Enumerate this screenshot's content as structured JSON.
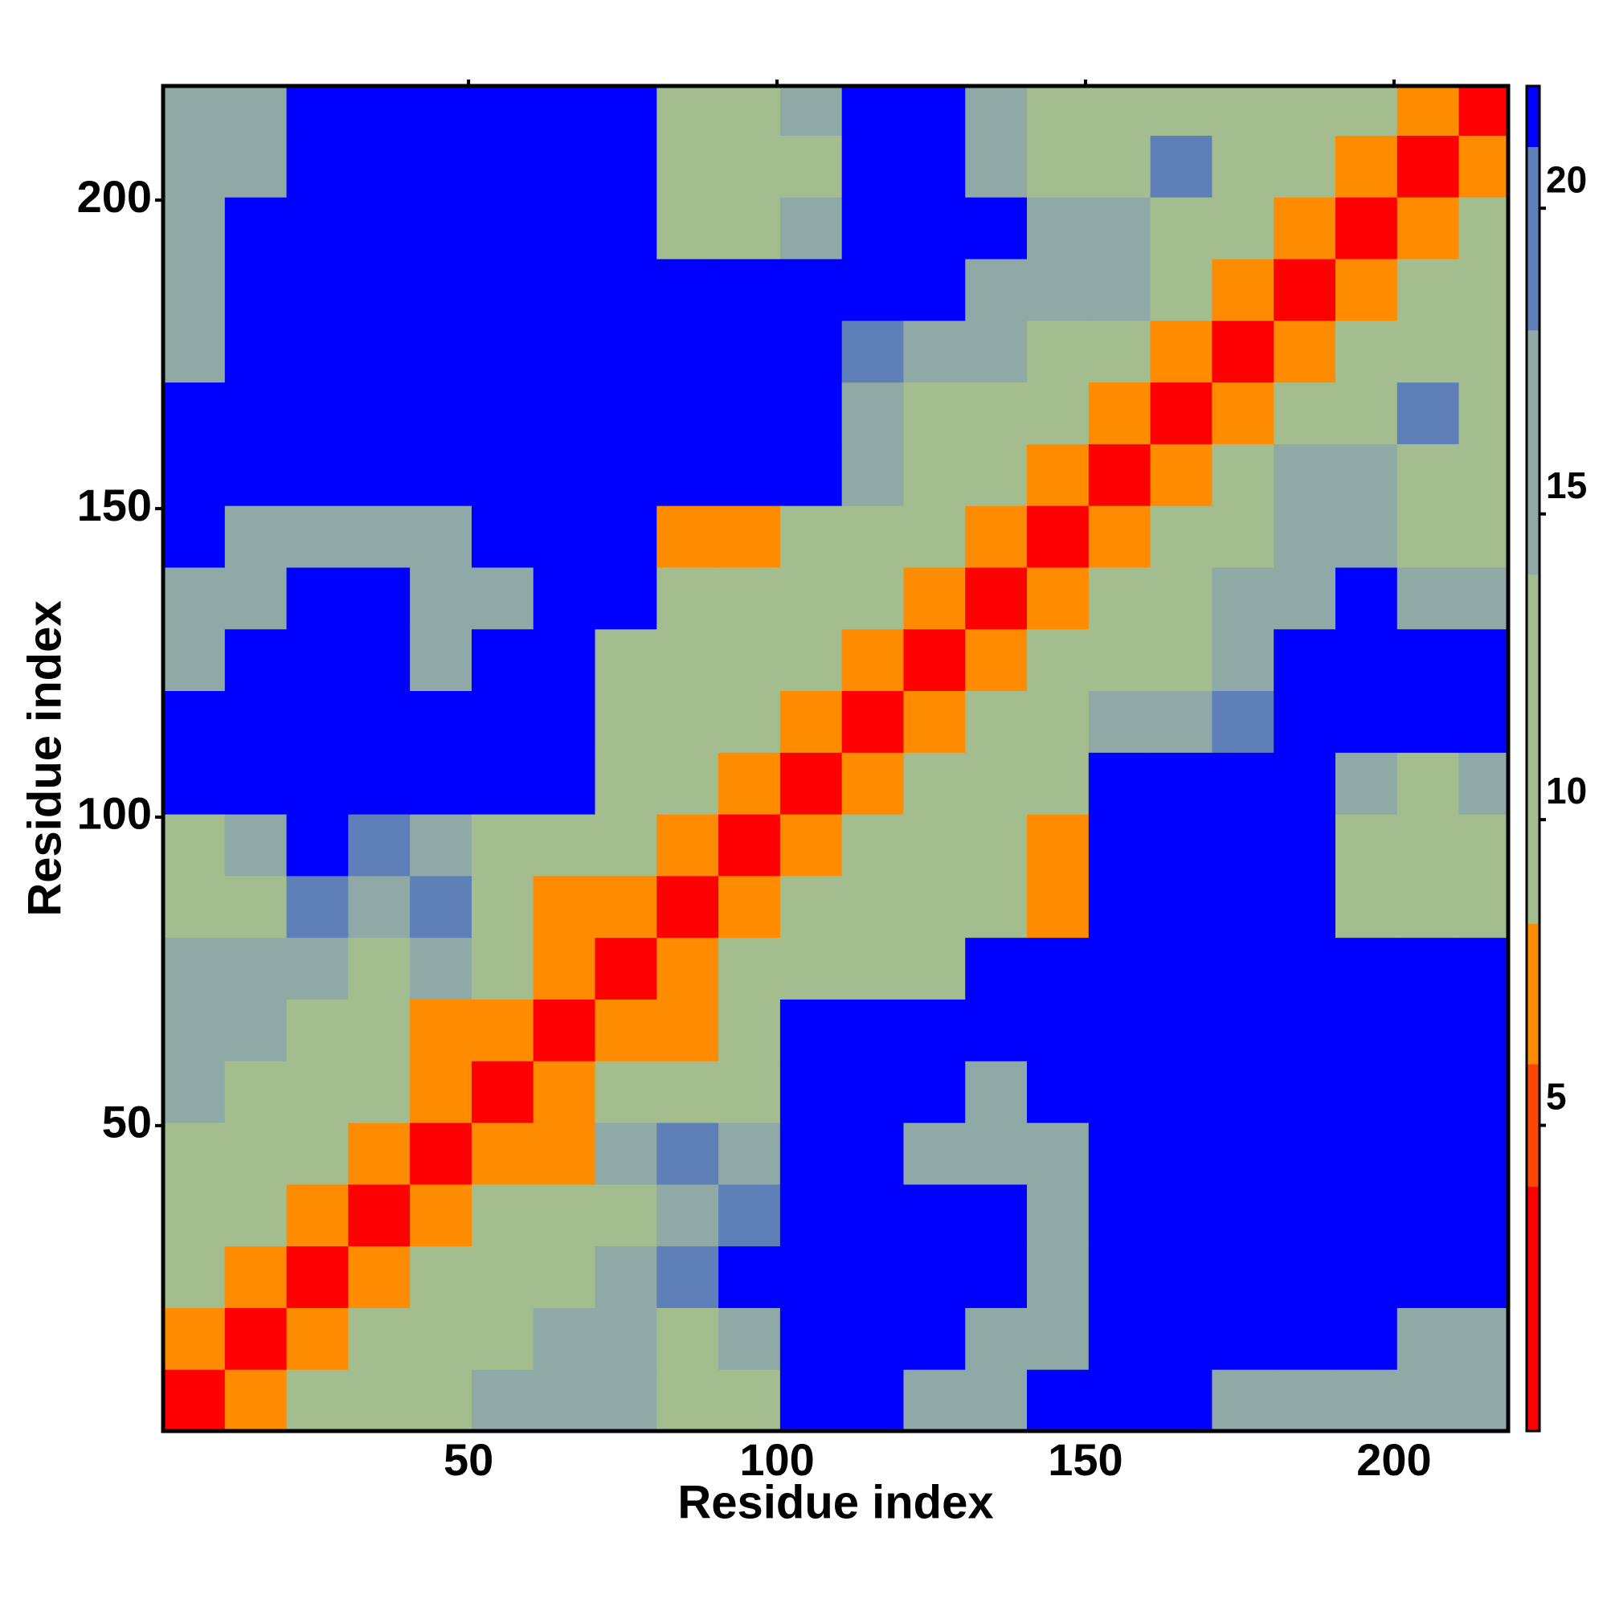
{
  "chart_data": {
    "type": "heatmap",
    "xlabel": "Residue index",
    "ylabel": "Residue index",
    "xlim": [
      0.5,
      218.5
    ],
    "ylim": [
      0.5,
      218.5
    ],
    "xticks": [
      50,
      100,
      150,
      200
    ],
    "yticks": [
      50,
      100,
      150,
      200
    ],
    "xbins": [
      0.5,
      10.5,
      20.5,
      30.5,
      40.5,
      50.5,
      60.5,
      70.5,
      80.5,
      90.5,
      100.5,
      110.5,
      120.5,
      130.5,
      140.5,
      150.5,
      160.5,
      170.5,
      180.5,
      190.5,
      200.5,
      210.5,
      218.5
    ],
    "ybins": [
      0.5,
      10.5,
      20.5,
      30.5,
      40.5,
      50.5,
      60.5,
      70.5,
      80.5,
      90.5,
      100.5,
      110.5,
      120.5,
      130.5,
      140.5,
      150.5,
      160.5,
      170.5,
      180.5,
      190.5,
      200.5,
      210.5,
      218.5
    ],
    "z": [
      [
        3,
        7,
        10,
        12,
        12,
        14,
        16,
        16,
        10,
        12,
        22,
        22,
        14,
        14,
        22,
        22,
        22,
        14,
        14,
        14,
        14,
        14
      ],
      [
        7,
        3,
        7,
        10,
        12,
        12,
        14,
        16,
        12,
        16,
        22,
        22,
        22,
        14,
        14,
        22,
        22,
        22,
        22,
        22,
        14,
        14
      ],
      [
        10,
        7,
        3,
        7,
        9,
        12,
        12,
        14,
        18,
        22,
        22,
        22,
        22,
        22,
        14,
        22,
        22,
        22,
        22,
        22,
        22,
        22
      ],
      [
        12,
        10,
        7,
        3,
        7,
        10,
        12,
        12,
        16,
        18,
        22,
        22,
        22,
        22,
        14,
        22,
        22,
        22,
        22,
        22,
        22,
        22
      ],
      [
        12,
        12,
        9,
        7,
        3,
        7,
        8,
        14,
        18,
        16,
        22,
        22,
        16,
        16,
        16,
        22,
        22,
        22,
        22,
        22,
        22,
        22
      ],
      [
        14,
        12,
        12,
        10,
        7,
        3,
        7,
        10,
        12,
        12,
        22,
        22,
        22,
        16,
        22,
        22,
        22,
        22,
        22,
        22,
        22,
        22
      ],
      [
        16,
        14,
        12,
        12,
        8,
        7,
        3,
        7,
        8,
        12,
        22,
        22,
        22,
        22,
        22,
        22,
        22,
        22,
        22,
        22,
        22,
        22
      ],
      [
        16,
        16,
        14,
        12,
        14,
        10,
        7,
        3,
        6,
        10,
        12,
        12,
        12,
        22,
        22,
        22,
        22,
        22,
        22,
        22,
        22,
        22
      ],
      [
        10,
        12,
        18,
        16,
        18,
        12,
        8,
        6,
        3,
        6,
        11,
        12,
        12,
        12,
        8,
        22,
        22,
        22,
        22,
        13,
        13,
        13
      ],
      [
        12,
        16,
        22,
        18,
        16,
        12,
        12,
        10,
        6,
        3,
        8,
        12,
        12,
        12,
        8,
        22,
        22,
        22,
        22,
        13,
        13,
        13
      ],
      [
        22,
        22,
        22,
        22,
        22,
        22,
        22,
        12,
        11,
        8,
        3,
        8,
        12,
        12,
        12,
        22,
        22,
        22,
        22,
        14,
        13,
        14
      ],
      [
        22,
        22,
        22,
        22,
        22,
        22,
        22,
        12,
        12,
        12,
        8,
        3,
        7,
        12,
        12,
        14,
        14,
        18,
        22,
        22,
        22,
        22
      ],
      [
        14,
        22,
        22,
        22,
        16,
        22,
        22,
        12,
        12,
        12,
        12,
        7,
        3,
        7,
        11,
        12,
        12,
        16,
        22,
        22,
        22,
        22
      ],
      [
        14,
        14,
        22,
        22,
        16,
        16,
        22,
        22,
        12,
        12,
        12,
        12,
        7,
        3,
        7,
        11,
        12,
        14,
        16,
        22,
        16,
        16
      ],
      [
        22,
        14,
        14,
        14,
        16,
        22,
        22,
        22,
        8,
        8,
        12,
        12,
        11,
        7,
        3,
        7,
        10,
        12,
        14,
        14,
        10,
        12
      ],
      [
        22,
        22,
        22,
        22,
        22,
        22,
        22,
        22,
        22,
        22,
        22,
        14,
        12,
        11,
        7,
        3,
        7,
        11,
        14,
        14,
        12,
        12
      ],
      [
        22,
        22,
        22,
        22,
        22,
        22,
        22,
        22,
        22,
        22,
        22,
        14,
        12,
        12,
        10,
        7,
        3,
        7,
        12,
        12,
        18,
        10
      ],
      [
        14,
        22,
        22,
        22,
        22,
        22,
        22,
        22,
        22,
        22,
        22,
        18,
        16,
        14,
        12,
        11,
        7,
        3,
        7,
        10,
        12,
        12
      ],
      [
        14,
        22,
        22,
        22,
        22,
        22,
        22,
        22,
        22,
        22,
        22,
        22,
        22,
        16,
        14,
        14,
        12,
        7,
        3,
        7,
        10,
        12
      ],
      [
        14,
        22,
        22,
        22,
        22,
        22,
        22,
        22,
        13,
        13,
        14,
        22,
        22,
        22,
        14,
        14,
        12,
        10,
        7,
        3,
        6,
        10
      ],
      [
        14,
        14,
        22,
        22,
        22,
        22,
        22,
        22,
        13,
        13,
        13,
        22,
        22,
        16,
        10,
        12,
        18,
        12,
        10,
        6,
        3,
        6
      ],
      [
        14,
        14,
        22,
        22,
        22,
        22,
        22,
        22,
        13,
        13,
        14,
        22,
        22,
        16,
        12,
        12,
        10,
        12,
        12,
        10,
        6,
        3
      ]
    ],
    "clim": [
      0,
      22
    ],
    "cticks": [
      5,
      10,
      15,
      20
    ],
    "colorscale": [
      [
        0,
        "#ff0000"
      ],
      [
        4,
        "#ff4500"
      ],
      [
        6,
        "#ff8c00"
      ],
      [
        8.3,
        "#a4bd8e"
      ],
      [
        14,
        "#8fa9a6"
      ],
      [
        18,
        "#5f7fb8"
      ],
      [
        21,
        "#0000ff"
      ]
    ]
  }
}
